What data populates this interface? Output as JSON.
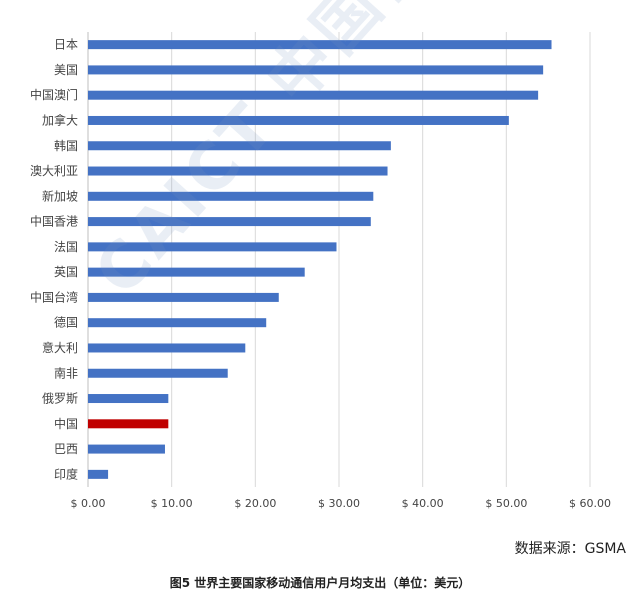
{
  "chart_data": {
    "type": "bar",
    "orientation": "horizontal",
    "categories": [
      "日本",
      "美国",
      "中国澳门",
      "加拿大",
      "韩国",
      "澳大利亚",
      "新加坡",
      "中国香港",
      "法国",
      "英国",
      "中国台湾",
      "德国",
      "意大利",
      "南非",
      "俄罗斯",
      "中国",
      "巴西",
      "印度"
    ],
    "values": [
      55.4,
      54.4,
      53.8,
      50.3,
      36.2,
      35.8,
      34.1,
      33.8,
      29.7,
      25.9,
      22.8,
      21.3,
      18.8,
      16.7,
      9.6,
      9.6,
      9.2,
      2.4
    ],
    "xlim": [
      0,
      60
    ],
    "x_ticks": [
      "$ 0.00",
      "$ 10.00",
      "$ 20.00",
      "$ 30.00",
      "$ 40.00",
      "$ 50.00",
      "$ 60.00"
    ],
    "x_tick_values": [
      0,
      10,
      20,
      30,
      40,
      50,
      60
    ],
    "bar_color": "#4472C4",
    "highlight_category": "中国",
    "highlight_color": "#C00000",
    "grid": true
  },
  "source": "数据来源：GSMA",
  "caption": "图5  世界主要国家移动通信用户月均支出（单位：美元）",
  "watermark": "CAICT 中国信通院"
}
